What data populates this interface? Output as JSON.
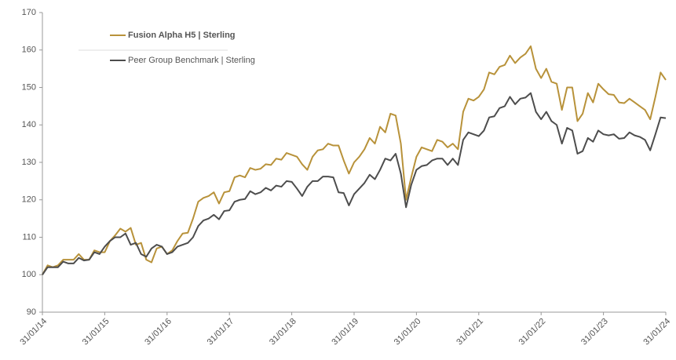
{
  "chart_data": {
    "type": "line",
    "categories": [
      "31/01/14",
      null,
      null,
      null,
      null,
      null,
      null,
      null,
      null,
      null,
      null,
      null,
      "31/01/15",
      null,
      null,
      null,
      null,
      null,
      null,
      null,
      null,
      null,
      null,
      null,
      "31/01/16",
      null,
      null,
      null,
      null,
      null,
      null,
      null,
      null,
      null,
      null,
      null,
      "31/01/17",
      null,
      null,
      null,
      null,
      null,
      null,
      null,
      null,
      null,
      null,
      null,
      "31/01/18",
      null,
      null,
      null,
      null,
      null,
      null,
      null,
      null,
      null,
      null,
      null,
      "31/01/19",
      null,
      null,
      null,
      null,
      null,
      null,
      null,
      null,
      null,
      null,
      null,
      "31/01/20",
      null,
      null,
      null,
      null,
      null,
      null,
      null,
      null,
      null,
      null,
      null,
      "31/01/21",
      null,
      null,
      null,
      null,
      null,
      null,
      null,
      null,
      null,
      null,
      null,
      "31/01/22",
      null,
      null,
      null,
      null,
      null,
      null,
      null,
      null,
      null,
      null,
      null,
      "31/01/23",
      null,
      null,
      null,
      null,
      null,
      null,
      null,
      null,
      null,
      null,
      null,
      "31/01/24"
    ],
    "series": [
      {
        "name": "Fusion Alpha H5 | Sterling",
        "color": "#b8923a",
        "values": [
          100,
          102.5,
          102,
          102.5,
          104,
          104,
          104,
          105.5,
          104,
          104,
          106.5,
          106,
          106,
          109,
          110.5,
          112.3,
          111.5,
          112.5,
          108,
          108.5,
          104,
          103.3,
          107,
          107.5,
          105.5,
          106.5,
          109,
          111,
          111.2,
          115,
          119.5,
          120.5,
          121,
          122,
          119,
          122,
          122.3,
          126,
          126.5,
          126,
          128.5,
          128,
          128.3,
          129.5,
          129.3,
          131,
          130.7,
          132.5,
          132,
          131.5,
          129.5,
          128,
          131.5,
          133.2,
          133.5,
          135,
          134.5,
          134.5,
          130.5,
          127,
          130,
          131.5,
          133.5,
          136.5,
          135,
          139.5,
          138,
          143,
          142.5,
          135,
          120,
          126,
          131.5,
          134,
          133.5,
          133,
          136,
          135.5,
          134,
          135,
          133.5,
          143.5,
          147,
          146.5,
          147.5,
          149.5,
          154,
          153.5,
          155.5,
          156,
          158.5,
          156.5,
          158,
          159,
          161,
          155,
          152.5,
          155,
          151.5,
          151,
          144,
          150,
          150,
          141,
          143,
          148.5,
          146,
          151,
          149.5,
          148.2,
          148,
          146,
          145.8,
          147,
          146,
          145,
          144,
          141.5,
          147.5,
          154,
          152
        ]
      },
      {
        "name": "Peer Group Benchmark | Sterling",
        "color": "#4d4d4d",
        "values": [
          100,
          102,
          102,
          102,
          103.5,
          103,
          103,
          104.5,
          103.8,
          104,
          106,
          105.5,
          107.5,
          109,
          110,
          110,
          111,
          108,
          108.5,
          105.5,
          104.8,
          107,
          108,
          107.5,
          105.5,
          106,
          107.5,
          108,
          108.5,
          110,
          113,
          114.5,
          115,
          116,
          114.8,
          117,
          117.2,
          119.5,
          120,
          120.2,
          122.3,
          121.5,
          122,
          123.2,
          122.5,
          123.8,
          123.5,
          125,
          124.8,
          123,
          121,
          123.5,
          125,
          125,
          126.2,
          126.2,
          126,
          122,
          121.8,
          118.5,
          121.5,
          123,
          124.5,
          126.7,
          125.5,
          128,
          131,
          130.5,
          132.3,
          127,
          118,
          124,
          128,
          129,
          129.3,
          130.5,
          131,
          131,
          129.3,
          131,
          129.3,
          136,
          138,
          137.5,
          137,
          138.5,
          142,
          142.3,
          144.5,
          145,
          147.5,
          145.5,
          147,
          147.3,
          148.5,
          143.5,
          141.5,
          143.5,
          141,
          140,
          135,
          139.2,
          138.5,
          132.3,
          133,
          136.5,
          135.5,
          138.5,
          137.5,
          137.2,
          137.5,
          136.3,
          136.5,
          138,
          137.2,
          136.8,
          136,
          133.2,
          137.5,
          142,
          141.8
        ]
      }
    ],
    "ylim": [
      90,
      170
    ],
    "yticks": [
      90,
      100,
      110,
      120,
      130,
      140,
      150,
      160,
      170
    ]
  }
}
